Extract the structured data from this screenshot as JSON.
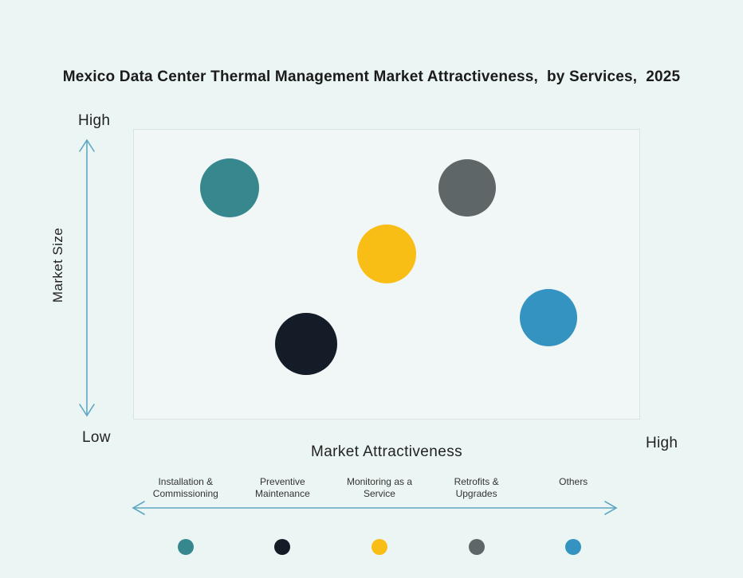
{
  "title": "Mexico Data Center Thermal Management Market Attractiveness,  by Services,  2025",
  "axes": {
    "y_label": "Market Size",
    "y_high_label": "High",
    "y_low_label": "Low",
    "x_label": "Market Attractiveness",
    "x_high_label": "High",
    "arrow_color": "#5FA7C5"
  },
  "colors": {
    "background": "#EBF5F3",
    "plot_background": "#F1F7F6",
    "plot_border": "#DBE3E2",
    "title_text": "#1B1B1B"
  },
  "chart_data": {
    "type": "bubble",
    "title": "Mexico Data Center Thermal Management Market Attractiveness, by Services, 2025",
    "xlabel": "Market Attractiveness",
    "ylabel": "Market Size",
    "x_axis_endpoints": [
      "Low",
      "High"
    ],
    "y_axis_endpoints": [
      "Low",
      "High"
    ],
    "axis_scale_note": "x and y are fractions of axis length, 0 = Low end, 1 = High end",
    "points": [
      {
        "slug": "installation-commissioning",
        "name": "Installation & Commissioning",
        "color": "#37878E",
        "x": 0.19,
        "y": 0.8,
        "radius": 37
      },
      {
        "slug": "preventive-maintenance",
        "name": "Preventive Maintenance",
        "color": "#131C27",
        "x": 0.34,
        "y": 0.26,
        "radius": 39
      },
      {
        "slug": "monitoring-as-a-service",
        "name": "Monitoring as a Service",
        "color": "#F8BE16",
        "x": 0.5,
        "y": 0.57,
        "radius": 37
      },
      {
        "slug": "retrofits-upgrades",
        "name": "Retrofits & Upgrades",
        "color": "#5F6668",
        "x": 0.66,
        "y": 0.8,
        "radius": 36
      },
      {
        "slug": "others",
        "name": "Others",
        "color": "#3593C1",
        "x": 0.82,
        "y": 0.35,
        "radius": 36
      }
    ]
  }
}
